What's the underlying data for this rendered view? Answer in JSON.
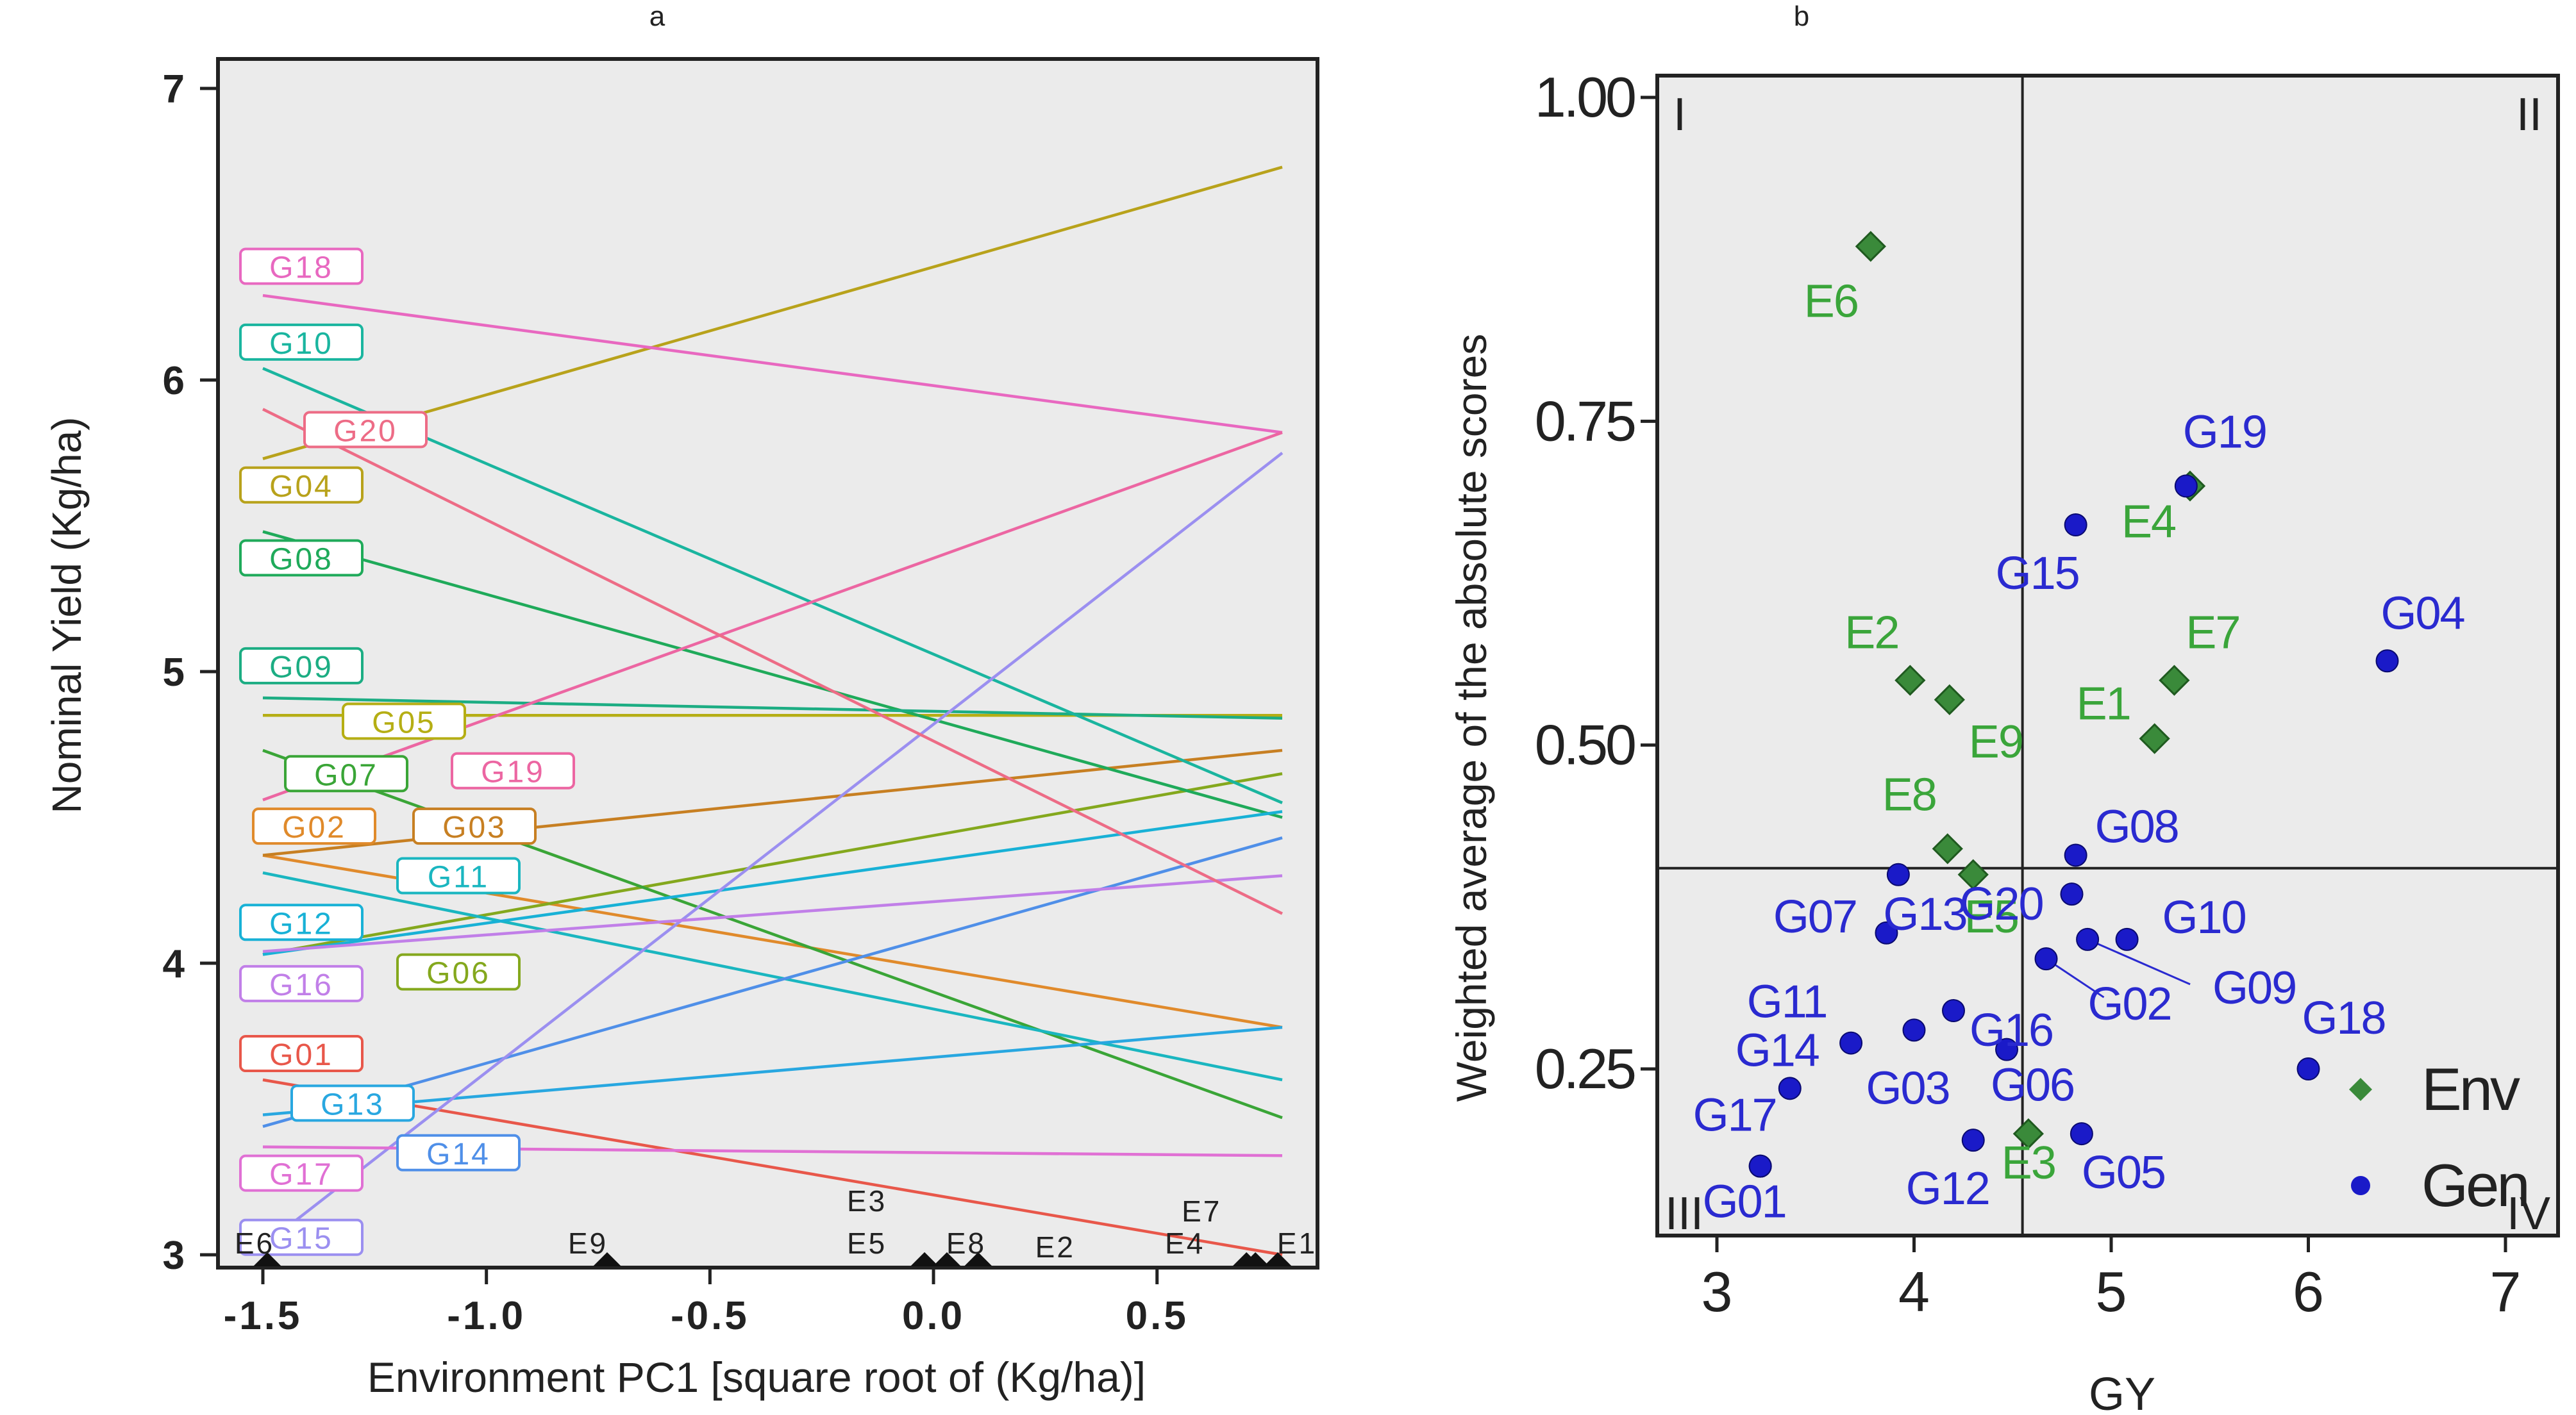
{
  "chart_data": [
    {
      "type": "line",
      "panel_label": "a",
      "title": "",
      "xlabel": "Environment PC1 [square root of (Kg/ha)]",
      "ylabel": "Nominal Yield (Kg/ha)",
      "xlim": [
        -1.5,
        0.78
      ],
      "ylim": [
        2.95,
        7.1
      ],
      "x_ticks": [
        {
          "v": -1.5,
          "t": "-1.5"
        },
        {
          "v": -1.0,
          "t": "-1.0"
        },
        {
          "v": -0.5,
          "t": "-0.5"
        },
        {
          "v": 0.0,
          "t": "0.0"
        },
        {
          "v": 0.5,
          "t": "0.5"
        }
      ],
      "y_ticks": [
        {
          "v": 3,
          "t": "3"
        },
        {
          "v": 4,
          "t": "4"
        },
        {
          "v": 5,
          "t": "5"
        },
        {
          "v": 6,
          "t": "6"
        },
        {
          "v": 7,
          "t": "7"
        }
      ],
      "series": [
        {
          "name": "G01",
          "color": "#e8574a",
          "y_start": 3.6,
          "y_end": 3.0,
          "label_y": 3.69
        },
        {
          "name": "G02",
          "color": "#e08a2b",
          "y_start": 4.37,
          "y_end": 3.78,
          "label_y": 4.47
        },
        {
          "name": "G03",
          "color": "#c77f22",
          "y_start": 4.37,
          "y_end": 4.73,
          "label_y": 4.47
        },
        {
          "name": "G04",
          "color": "#b8a21b",
          "y_start": 5.73,
          "y_end": 6.73,
          "label_y": 5.64
        },
        {
          "name": "G05",
          "color": "#b5ae14",
          "y_start": 4.85,
          "y_end": 4.85,
          "label_y": 4.83
        },
        {
          "name": "G06",
          "color": "#84a81d",
          "y_start": 4.03,
          "y_end": 4.65,
          "label_y": 3.97
        },
        {
          "name": "G07",
          "color": "#3aa537",
          "y_start": 4.73,
          "y_end": 3.47,
          "label_y": 4.65
        },
        {
          "name": "G08",
          "color": "#1faa5a",
          "y_start": 5.48,
          "y_end": 4.5,
          "label_y": 5.39
        },
        {
          "name": "G09",
          "color": "#1cad83",
          "y_start": 4.91,
          "y_end": 4.84,
          "label_y": 5.02
        },
        {
          "name": "G10",
          "color": "#1ab59f",
          "y_start": 6.04,
          "y_end": 4.55,
          "label_y": 6.13
        },
        {
          "name": "G11",
          "color": "#1ab6c0",
          "y_start": 4.31,
          "y_end": 3.6,
          "label_y": 4.3
        },
        {
          "name": "G12",
          "color": "#18b1d6",
          "y_start": 4.03,
          "y_end": 4.52,
          "label_y": 4.14
        },
        {
          "name": "G13",
          "color": "#28a7e0",
          "y_start": 3.48,
          "y_end": 3.78,
          "label_y": 3.52
        },
        {
          "name": "G14",
          "color": "#4f8fe8",
          "y_start": 3.44,
          "y_end": 4.43,
          "label_y": 3.35
        },
        {
          "name": "G15",
          "color": "#9b8ff0",
          "y_start": 3.03,
          "y_end": 5.75,
          "label_y": 3.06
        },
        {
          "name": "G16",
          "color": "#c17fe8",
          "y_start": 4.04,
          "y_end": 4.3,
          "label_y": 3.93
        },
        {
          "name": "G17",
          "color": "#e070d4",
          "y_start": 3.37,
          "y_end": 3.34,
          "label_y": 3.28
        },
        {
          "name": "G18",
          "color": "#e868c0",
          "y_start": 6.29,
          "y_end": 5.82,
          "label_y": 6.39
        },
        {
          "name": "G19",
          "color": "#ec66a2",
          "y_start": 4.56,
          "y_end": 5.82,
          "label_y": 4.66
        },
        {
          "name": "G20",
          "color": "#ed6c86",
          "y_start": 5.9,
          "y_end": 4.17,
          "label_y": 5.83
        }
      ],
      "environments": [
        {
          "name": "E6",
          "x": -1.49
        },
        {
          "name": "E9",
          "x": -0.73
        },
        {
          "name": "E3",
          "x": -0.02
        },
        {
          "name": "E5",
          "x": -0.02
        },
        {
          "name": "E8",
          "x": 0.03
        },
        {
          "name": "E2",
          "x": 0.1
        },
        {
          "name": "E7",
          "x": 0.7
        },
        {
          "name": "E4",
          "x": 0.72
        },
        {
          "name": "E1",
          "x": 0.77
        }
      ]
    },
    {
      "type": "scatter",
      "panel_label": "b",
      "title": "",
      "xlabel": "GY",
      "ylabel": "Weighted average of the absolute scores",
      "xlim": [
        2.7,
        7.25
      ],
      "ylim": [
        0.12,
        1.02
      ],
      "x_ticks": [
        {
          "v": 3,
          "t": "3"
        },
        {
          "v": 4,
          "t": "4"
        },
        {
          "v": 5,
          "t": "5"
        },
        {
          "v": 6,
          "t": "6"
        },
        {
          "v": 7,
          "t": "7"
        }
      ],
      "y_ticks": [
        {
          "v": 0.25,
          "t": "0.25"
        },
        {
          "v": 0.5,
          "t": "0.50"
        },
        {
          "v": 0.75,
          "t": "0.75"
        },
        {
          "v": 1.0,
          "t": "1.00"
        }
      ],
      "reference_lines": {
        "x": 4.55,
        "y": 0.405
      },
      "quadrant_labels": [
        "I",
        "II",
        "III",
        "IV"
      ],
      "legend": [
        {
          "label": "Env",
          "marker": "diamond",
          "color": "#3a8a3a"
        },
        {
          "label": "Gen",
          "marker": "circle",
          "color": "#1a1ac8"
        }
      ],
      "environments": [
        {
          "name": "E1",
          "x": 5.22,
          "y": 0.505
        },
        {
          "name": "E2",
          "x": 3.98,
          "y": 0.55
        },
        {
          "name": "E3",
          "x": 4.58,
          "y": 0.2
        },
        {
          "name": "E4",
          "x": 5.4,
          "y": 0.7
        },
        {
          "name": "E5",
          "x": 4.3,
          "y": 0.4
        },
        {
          "name": "E6",
          "x": 3.78,
          "y": 0.885
        },
        {
          "name": "E7",
          "x": 5.32,
          "y": 0.55
        },
        {
          "name": "E8",
          "x": 4.17,
          "y": 0.42
        },
        {
          "name": "E9",
          "x": 4.18,
          "y": 0.535
        }
      ],
      "genotypes": [
        {
          "name": "G01",
          "x": 3.22,
          "y": 0.175
        },
        {
          "name": "G02",
          "x": 4.67,
          "y": 0.335
        },
        {
          "name": "G03",
          "x": 4.0,
          "y": 0.28
        },
        {
          "name": "G04",
          "x": 6.4,
          "y": 0.565
        },
        {
          "name": "G05",
          "x": 4.85,
          "y": 0.2
        },
        {
          "name": "G06",
          "x": 4.47,
          "y": 0.265
        },
        {
          "name": "G07",
          "x": 3.92,
          "y": 0.4
        },
        {
          "name": "G08",
          "x": 4.82,
          "y": 0.415
        },
        {
          "name": "G09",
          "x": 4.88,
          "y": 0.35
        },
        {
          "name": "G10",
          "x": 5.08,
          "y": 0.35
        },
        {
          "name": "G11",
          "x": 3.68,
          "y": 0.27
        },
        {
          "name": "G12",
          "x": 4.3,
          "y": 0.195
        },
        {
          "name": "G13",
          "x": 3.86,
          "y": 0.355
        },
        {
          "name": "G14",
          "x": 3.37,
          "y": 0.235
        },
        {
          "name": "G15",
          "x": 4.82,
          "y": 0.67
        },
        {
          "name": "G16",
          "x": 4.2,
          "y": 0.295
        },
        {
          "name": "G17",
          "x": 3.22,
          "y": 0.175
        },
        {
          "name": "G18",
          "x": 6.0,
          "y": 0.25
        },
        {
          "name": "G19",
          "x": 5.38,
          "y": 0.7
        },
        {
          "name": "G20",
          "x": 4.8,
          "y": 0.385
        }
      ]
    }
  ]
}
